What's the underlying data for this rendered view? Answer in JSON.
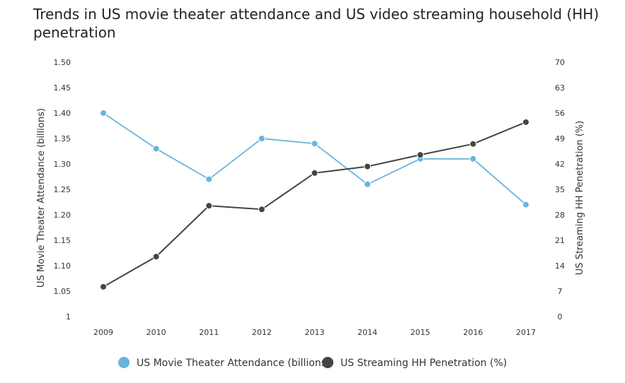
{
  "chart_data": {
    "type": "line",
    "title": "Trends in US movie theater attendance and US video streaming household (HH) penetration",
    "categories": [
      "2009",
      "2010",
      "2011",
      "2012",
      "2013",
      "2014",
      "2015",
      "2016",
      "2017"
    ],
    "y_left": {
      "label": "US Movie Theater Attendance (billions)",
      "range": [
        1,
        1.5
      ],
      "ticks": [
        "1",
        "1.05",
        "1.10",
        "1.15",
        "1.20",
        "1.25",
        "1.30",
        "1.35",
        "1.40",
        "1.45",
        "1.50"
      ]
    },
    "y_right": {
      "label": "US Streaming HH Penetration (%)",
      "range": [
        0,
        70
      ],
      "ticks": [
        "0",
        "7",
        "14",
        "21",
        "28",
        "35",
        "42",
        "49",
        "56",
        "63",
        "70"
      ]
    },
    "series": [
      {
        "name": "US Movie Theater Attendance (billions)",
        "axis": "left",
        "color": "#6ab4dc",
        "values": [
          1.4,
          1.33,
          1.27,
          1.35,
          1.34,
          1.26,
          1.31,
          1.31,
          1.22
        ]
      },
      {
        "name": "US Streaming HH Penetration (%)",
        "axis": "right",
        "color": "#444444",
        "values": [
          8.2,
          16.5,
          30.5,
          29.5,
          39.5,
          41.3,
          44.5,
          47.5,
          53.5
        ]
      }
    ],
    "grid": false,
    "legend_position": "bottom"
  }
}
